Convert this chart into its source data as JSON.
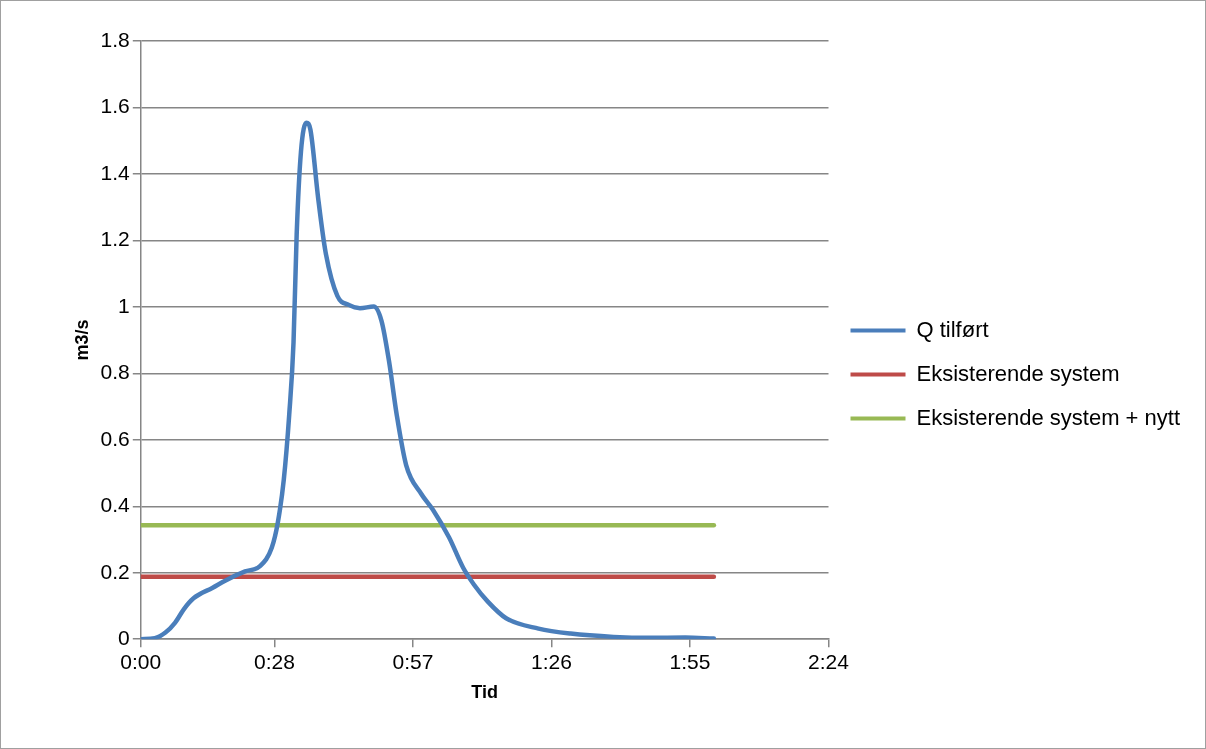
{
  "chart_data": {
    "type": "line",
    "xlabel": "Tid",
    "ylabel": "m3/s",
    "xlim": [
      0,
      2.4
    ],
    "xticks": [
      {
        "value": 0,
        "label": "0:00"
      },
      {
        "value": 0.4667,
        "label": "0:28"
      },
      {
        "value": 0.95,
        "label": "0:57"
      },
      {
        "value": 1.4333,
        "label": "1:26"
      },
      {
        "value": 1.9167,
        "label": "1:55"
      },
      {
        "value": 2.4,
        "label": "2:24"
      }
    ],
    "ylim": [
      0,
      1.8
    ],
    "yticks": [
      0,
      0.2,
      0.4,
      0.6,
      0.8,
      1,
      1.2,
      1.4,
      1.6,
      1.8
    ],
    "grid": "y",
    "legend": "right",
    "series": [
      {
        "name": "Q tilført",
        "color": "#4a7ebb",
        "x": [
          0,
          0.049,
          0.086,
          0.12,
          0.15,
          0.184,
          0.251,
          0.296,
          0.364,
          0.416,
          0.457,
          0.478,
          0.499,
          0.518,
          0.533,
          0.544,
          0.559,
          0.578,
          0.592,
          0.619,
          0.645,
          0.686,
          0.726,
          0.765,
          0.813,
          0.84,
          0.866,
          0.893,
          0.926,
          0.979,
          1.02,
          1.076,
          1.125,
          1.163,
          1.211,
          1.275,
          1.388,
          1.5,
          1.65,
          1.774,
          1.9,
          2.0
        ],
        "values": [
          0,
          0.003,
          0.02,
          0.05,
          0.09,
          0.123,
          0.155,
          0.177,
          0.204,
          0.22,
          0.275,
          0.35,
          0.48,
          0.676,
          0.893,
          1.218,
          1.467,
          1.554,
          1.533,
          1.327,
          1.164,
          1.033,
          1.006,
          0.996,
          1.001,
          0.958,
          0.838,
          0.676,
          0.524,
          0.437,
          0.389,
          0.306,
          0.215,
          0.164,
          0.113,
          0.063,
          0.032,
          0.017,
          0.007,
          0.004,
          0.005,
          0.002
        ]
      },
      {
        "name": "Eksisterende system",
        "color": "#be4b48",
        "x": [
          0,
          2.0
        ],
        "values": [
          0.188,
          0.188
        ]
      },
      {
        "name": "Eksisterende system + nytt",
        "color": "#98b954",
        "x": [
          0,
          2.0
        ],
        "values": [
          0.343,
          0.343
        ]
      }
    ]
  }
}
